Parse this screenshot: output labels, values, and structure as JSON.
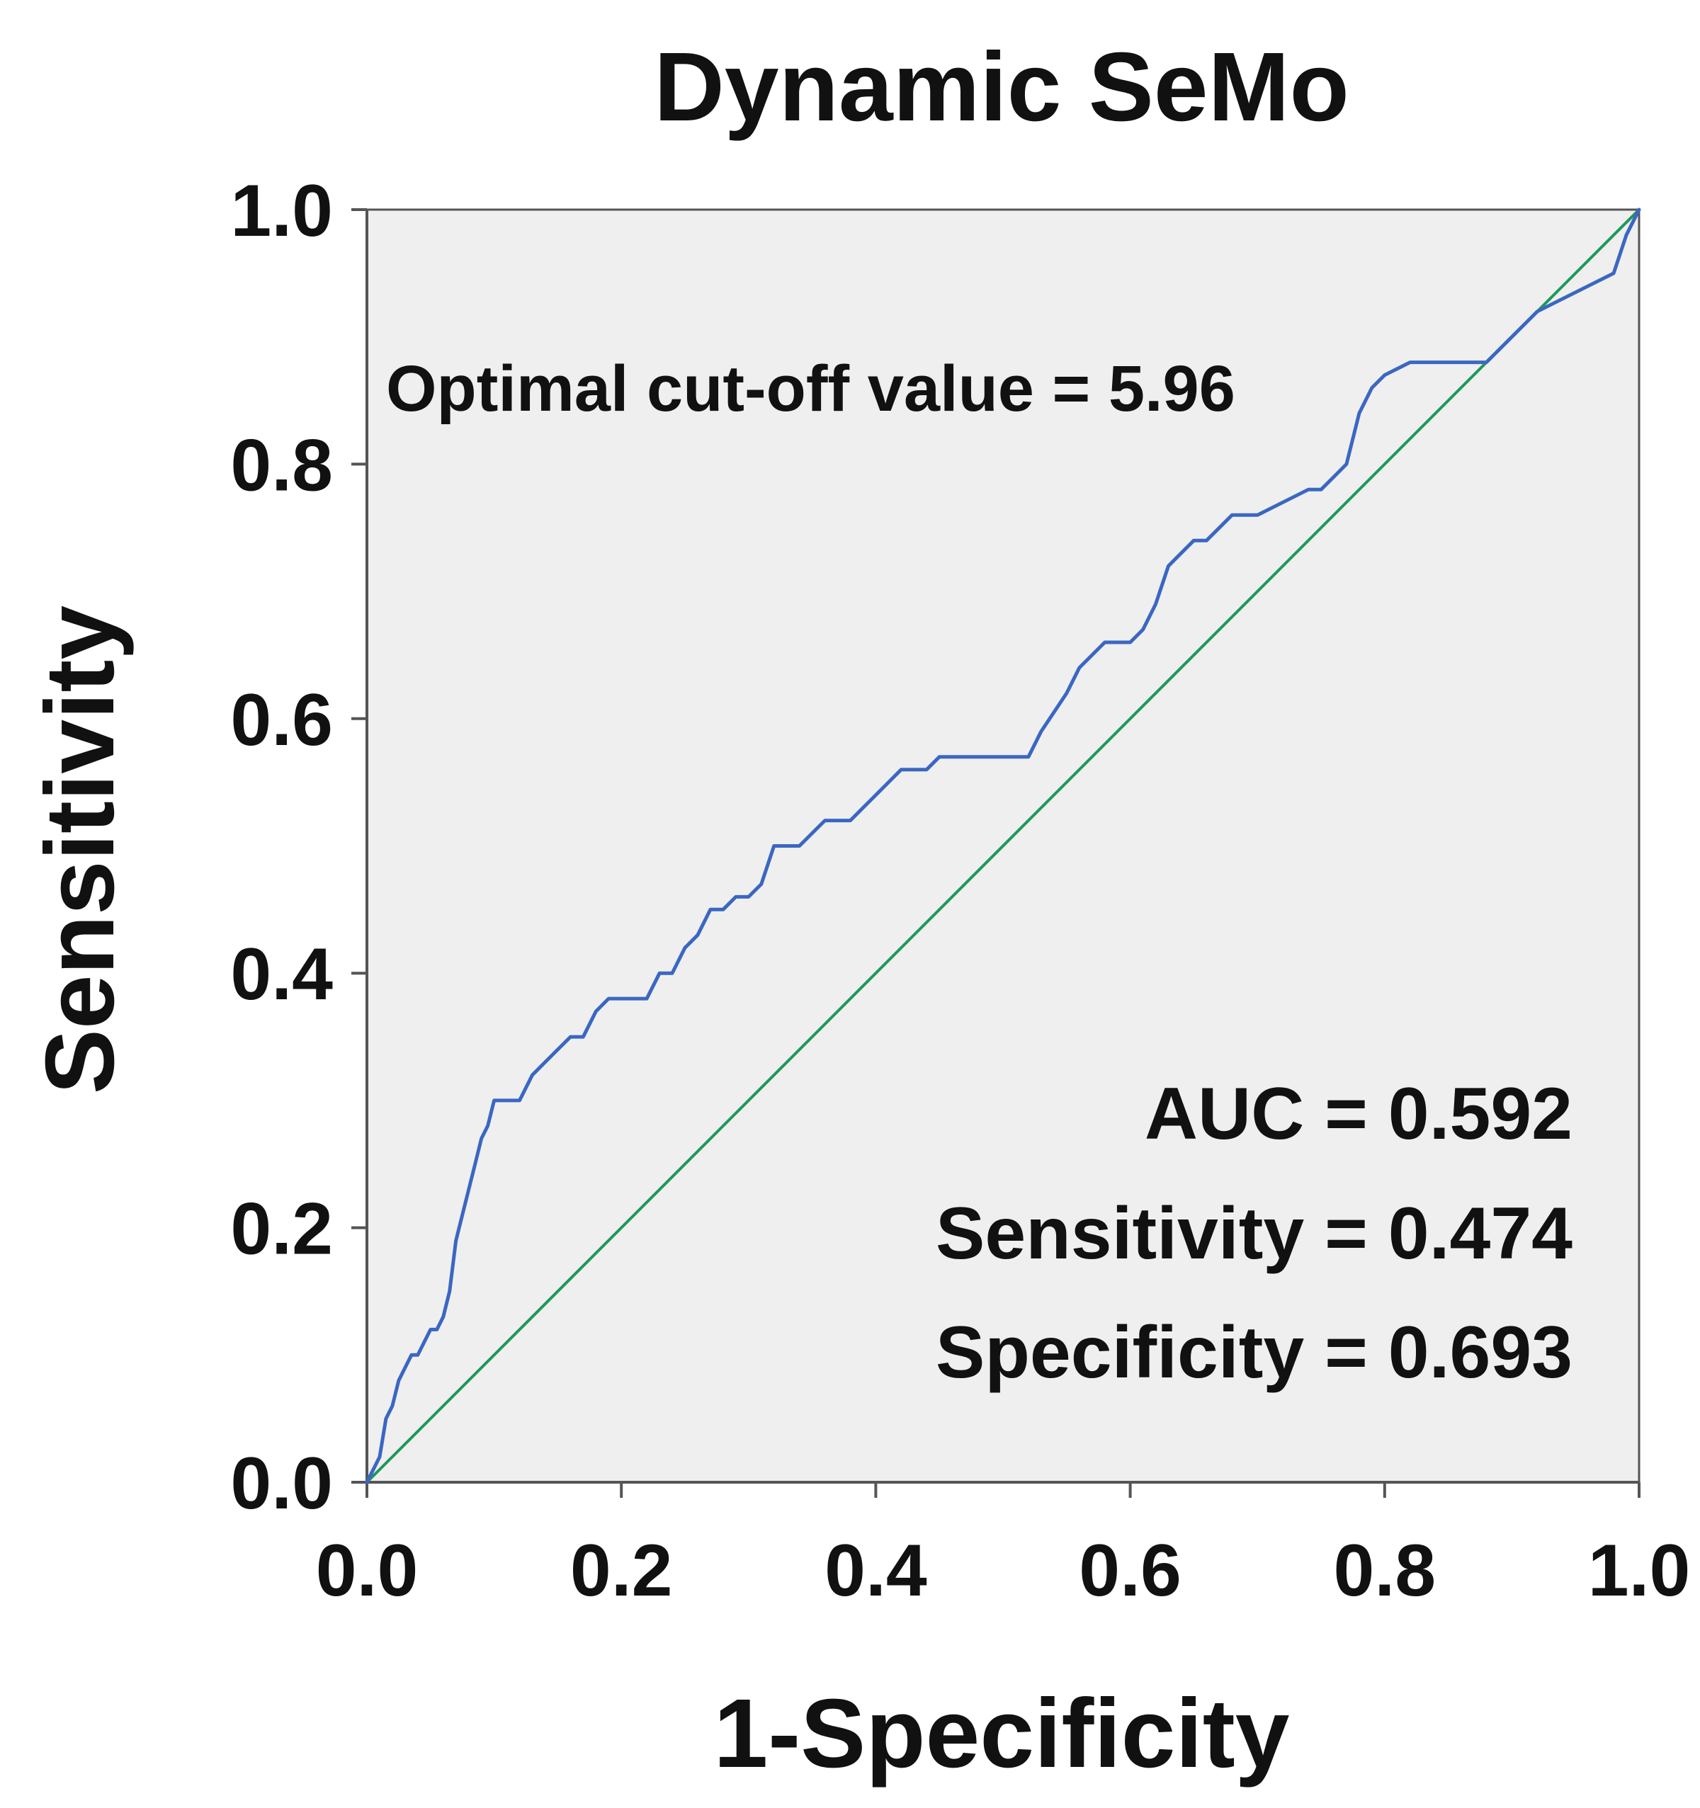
{
  "chart_data": {
    "type": "line",
    "title": "Dynamic SeMo",
    "xlabel": "1-Specificity",
    "ylabel": "Sensitivity",
    "xlim": [
      0.0,
      1.0
    ],
    "ylim": [
      0.0,
      1.0
    ],
    "x_ticks": [
      "0.0",
      "0.2",
      "0.4",
      "0.6",
      "0.8",
      "1.0"
    ],
    "y_ticks": [
      "0.0",
      "0.2",
      "0.4",
      "0.6",
      "0.8",
      "1.0"
    ],
    "grid": false,
    "background_color": "#efefef",
    "series": [
      {
        "name": "ROC curve",
        "color": "#3b67c2",
        "x": [
          0.0,
          0.01,
          0.015,
          0.02,
          0.025,
          0.03,
          0.035,
          0.04,
          0.045,
          0.05,
          0.055,
          0.06,
          0.065,
          0.07,
          0.075,
          0.08,
          0.085,
          0.09,
          0.095,
          0.1,
          0.11,
          0.12,
          0.13,
          0.14,
          0.15,
          0.16,
          0.17,
          0.18,
          0.19,
          0.2,
          0.22,
          0.23,
          0.24,
          0.25,
          0.26,
          0.27,
          0.28,
          0.29,
          0.3,
          0.31,
          0.32,
          0.33,
          0.34,
          0.35,
          0.36,
          0.37,
          0.38,
          0.39,
          0.4,
          0.41,
          0.42,
          0.43,
          0.44,
          0.45,
          0.46,
          0.48,
          0.5,
          0.52,
          0.53,
          0.55,
          0.56,
          0.57,
          0.58,
          0.6,
          0.61,
          0.62,
          0.63,
          0.64,
          0.65,
          0.66,
          0.67,
          0.68,
          0.7,
          0.72,
          0.74,
          0.75,
          0.76,
          0.77,
          0.78,
          0.79,
          0.8,
          0.82,
          0.85,
          0.88,
          0.89,
          0.9,
          0.92,
          0.94,
          0.96,
          0.98,
          0.99,
          1.0
        ],
        "y": [
          0.0,
          0.02,
          0.05,
          0.06,
          0.08,
          0.09,
          0.1,
          0.1,
          0.11,
          0.12,
          0.12,
          0.13,
          0.15,
          0.19,
          0.21,
          0.23,
          0.25,
          0.27,
          0.28,
          0.3,
          0.3,
          0.3,
          0.32,
          0.33,
          0.34,
          0.35,
          0.35,
          0.37,
          0.38,
          0.38,
          0.38,
          0.4,
          0.4,
          0.42,
          0.43,
          0.45,
          0.45,
          0.46,
          0.46,
          0.47,
          0.5,
          0.5,
          0.5,
          0.51,
          0.52,
          0.52,
          0.52,
          0.53,
          0.54,
          0.55,
          0.56,
          0.56,
          0.56,
          0.57,
          0.57,
          0.57,
          0.57,
          0.57,
          0.59,
          0.62,
          0.64,
          0.65,
          0.66,
          0.66,
          0.67,
          0.69,
          0.72,
          0.73,
          0.74,
          0.74,
          0.75,
          0.76,
          0.76,
          0.77,
          0.78,
          0.78,
          0.79,
          0.8,
          0.84,
          0.86,
          0.87,
          0.88,
          0.88,
          0.88,
          0.89,
          0.9,
          0.92,
          0.93,
          0.94,
          0.95,
          0.98,
          1.0
        ]
      },
      {
        "name": "Reference line",
        "color": "#1a9a58",
        "x": [
          0.0,
          1.0
        ],
        "y": [
          0.0,
          1.0
        ]
      }
    ],
    "annotations": {
      "cutoff": "Optimal cut-off value = 5.96",
      "auc": "AUC = 0.592",
      "sensitivity": "Sensitivity = 0.474",
      "specificity": "Specificity = 0.693"
    }
  }
}
